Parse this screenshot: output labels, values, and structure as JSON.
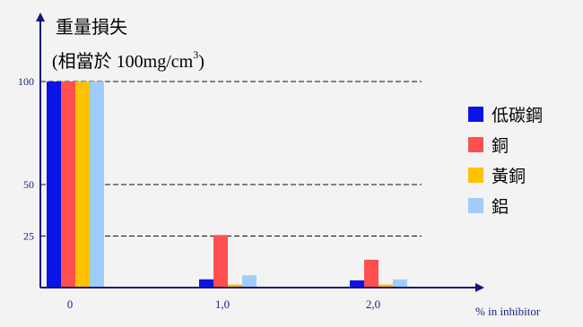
{
  "chart_data": {
    "type": "bar",
    "ylabel_line1": "重量損失",
    "ylabel_line2_prefix": "(相當於 100mg/cm",
    "ylabel_line2_sup": "3",
    "ylabel_line2_suffix": ")",
    "xlabel": "% in inhibitor",
    "categories": [
      "0",
      "1,0",
      "2,0"
    ],
    "yticks": [
      25,
      50,
      100
    ],
    "ylim": [
      0,
      125
    ],
    "grid": "dashed at 25, 50, 100",
    "legend_position": "right",
    "series": [
      {
        "name": "低碳鋼",
        "color": "#0a14e6",
        "values": [
          100,
          4,
          3.5
        ]
      },
      {
        "name": "銅",
        "color": "#ff4f4f",
        "values": [
          100,
          25.5,
          13.5
        ]
      },
      {
        "name": "黃銅",
        "color": "#ffc000",
        "values": [
          100,
          1.5,
          1.5
        ]
      },
      {
        "name": "鋁",
        "color": "#9fcdfa",
        "values": [
          100,
          6,
          4
        ]
      }
    ]
  },
  "colors": {
    "axis": "#141480",
    "tick_label": "#1a237e",
    "grid": "#111111",
    "background": "#f3f3f3"
  }
}
